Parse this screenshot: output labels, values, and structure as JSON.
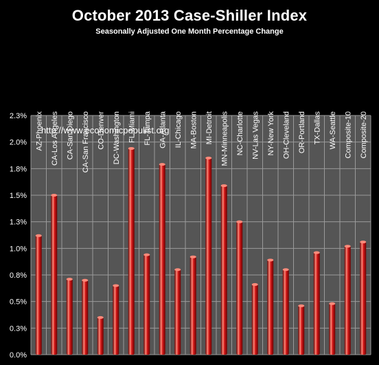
{
  "chart_data": {
    "type": "bar",
    "title": "October 2013 Case-Shiller Index",
    "subtitle": "Seasonally Adjusted One Month Percentage Change",
    "watermark": "http://www.economicpopulist.org",
    "categories": [
      "AZ-Phoenix",
      "CA-Los Angeles",
      "CA-San Diego",
      "CA-San Francisco",
      "CO-Denver",
      "DC-Washington",
      "FL-Miami",
      "FL-Tampa",
      "GA-Atlanta",
      "IL-Chicago",
      "MA-Boston",
      "MI-Detroit",
      "MN-Minneapolis",
      "NC-Charlotte",
      "NV-Las Vegas",
      "NY-New York",
      "OH-Cleveland",
      "OR-Portland",
      "TX-Dallas",
      "WA-Seattle",
      "Composite-10",
      "Composite-20"
    ],
    "values": [
      1.12,
      1.5,
      0.71,
      0.7,
      0.35,
      0.65,
      1.94,
      0.94,
      1.79,
      0.8,
      0.92,
      1.85,
      1.59,
      1.25,
      0.66,
      0.89,
      0.8,
      0.46,
      0.96,
      0.48,
      1.02,
      1.06
    ],
    "ylim": [
      0,
      2.25
    ],
    "yticks": [
      0,
      0.25,
      0.5,
      0.75,
      1.0,
      1.25,
      1.5,
      1.75,
      2.0,
      2.25
    ],
    "ytick_labels": [
      "0.0%",
      "0.3%",
      "0.5%",
      "0.8%",
      "1.0%",
      "1.3%",
      "1.5%",
      "1.8%",
      "2.0%",
      "2.3%"
    ],
    "xlabel": "",
    "ylabel": "",
    "grid": true,
    "colors": {
      "background": "#000000",
      "plot_background": "#555555",
      "grid": "#9a9a9a",
      "bar": "#d81b1b",
      "bar_highlight": "#ff8a7a",
      "bar_shadow": "#6a0000",
      "text": "#ffffff"
    }
  }
}
